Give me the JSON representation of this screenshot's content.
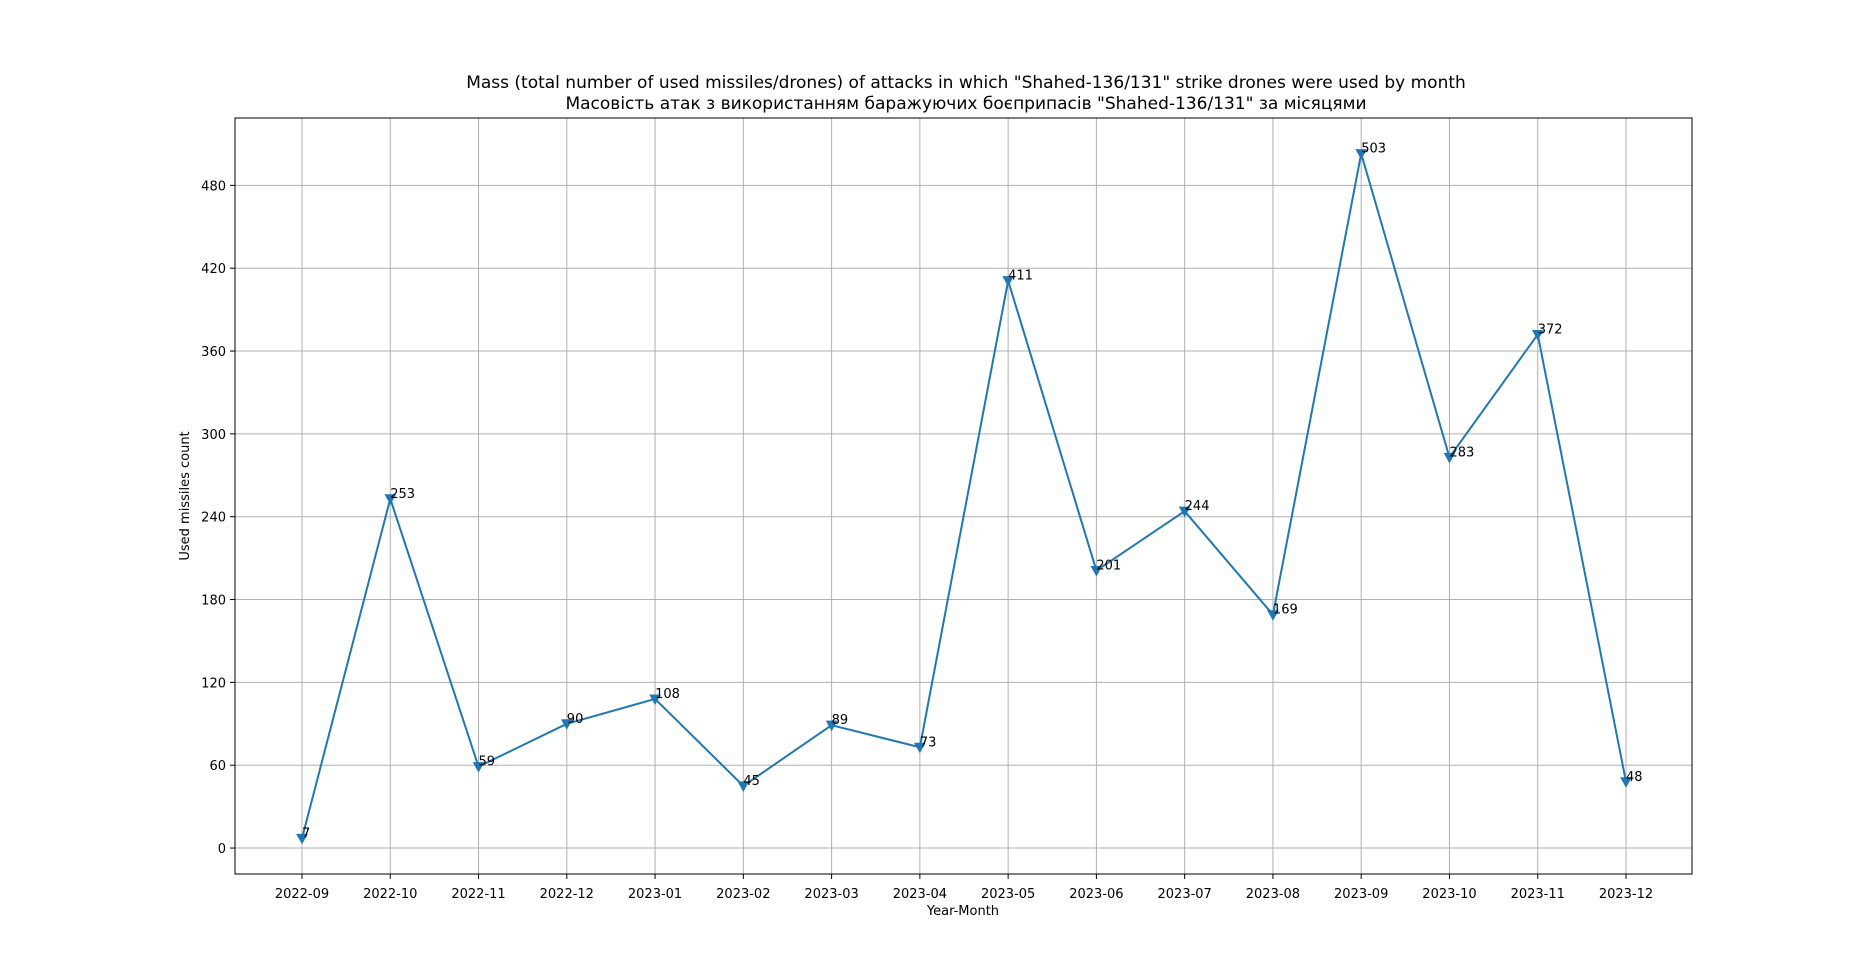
{
  "chart_data": {
    "type": "line",
    "title": "Mass (total number of used missiles/drones) of attacks in which \"Shahed-136/131\" strike drones were used by month",
    "subtitle": "Масовість атак з використанням баражуючих боєприпасів \"Shahed-136/131\" за місяцями",
    "xlabel": "Year-Month",
    "ylabel": "Used missiles count",
    "categories": [
      "2022-09",
      "2022-10",
      "2022-11",
      "2022-12",
      "2023-01",
      "2023-02",
      "2023-03",
      "2023-04",
      "2023-05",
      "2023-06",
      "2023-07",
      "2023-08",
      "2023-09",
      "2023-10",
      "2023-11",
      "2023-12"
    ],
    "series": [
      {
        "values": [
          7,
          253,
          59,
          90,
          108,
          45,
          89,
          73,
          411,
          201,
          244,
          169,
          503,
          283,
          372,
          48
        ]
      }
    ],
    "yticks": [
      0,
      60,
      120,
      180,
      240,
      300,
      360,
      420,
      480
    ],
    "ylim": [
      -18.8,
      528.8
    ],
    "grid": true,
    "marker": "triangle-down",
    "line_color": "#1f77b4"
  }
}
